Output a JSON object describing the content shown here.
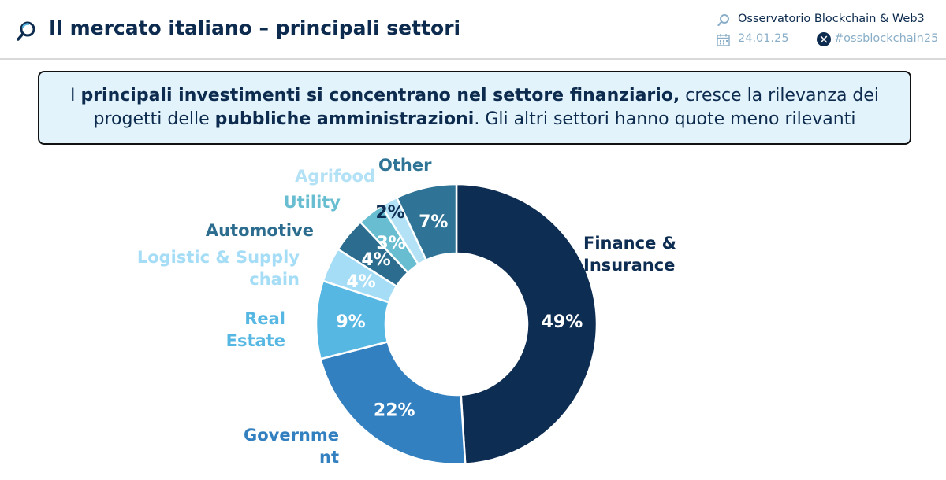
{
  "header": {
    "title": "Il mercato italiano – principali settori",
    "org": "Osservatorio Blockchain & Web3",
    "date": "24.01.25",
    "hashtag": "#ossblockchain25"
  },
  "callout": {
    "p1": "I ",
    "b1": "principali investimenti si concentrano nel settore finanziario,",
    "p2": " cresce la rilevanza dei",
    "p3": "progetti delle ",
    "b2": "pubbliche amministrazioni",
    "p4": ". Gli altri settori hanno quote meno rilevanti"
  },
  "chart_data": {
    "type": "pie",
    "donut": true,
    "categories": [
      "Finance & Insurance",
      "Government",
      "Real Estate",
      "Logistic & Supply chain",
      "Automotive",
      "Utility",
      "Agrifood",
      "Other"
    ],
    "values": [
      49,
      22,
      9,
      4,
      4,
      3,
      2,
      7
    ],
    "value_labels": [
      "49%",
      "22%",
      "9%",
      "4%",
      "4%",
      "3%",
      "2%",
      "7%"
    ],
    "category_lines": [
      [
        "Finance &",
        "Insurance"
      ],
      [
        "Governme",
        "nt"
      ],
      [
        "Real",
        "Estate"
      ],
      [
        "Logistic & Supply",
        "chain"
      ],
      [
        "Automotive"
      ],
      [
        "Utility"
      ],
      [
        "Agrifood"
      ],
      [
        "Other"
      ]
    ],
    "colors": [
      "#0e2d52",
      "#3380c0",
      "#56b7e3",
      "#a5ddf6",
      "#2c6d8f",
      "#68bed0",
      "#b3e1f5",
      "#2f7496"
    ],
    "label_colors": [
      "#0e2d52",
      "#3380c0",
      "#56b7e3",
      "#a5ddf6",
      "#2c6d8f",
      "#68bed0",
      "#b3e1f5",
      "#2f7496"
    ],
    "value_label_colors": [
      "#ffffff",
      "#ffffff",
      "#ffffff",
      "#ffffff",
      "#ffffff",
      "#ffffff",
      "#0e2d52",
      "#ffffff"
    ]
  }
}
